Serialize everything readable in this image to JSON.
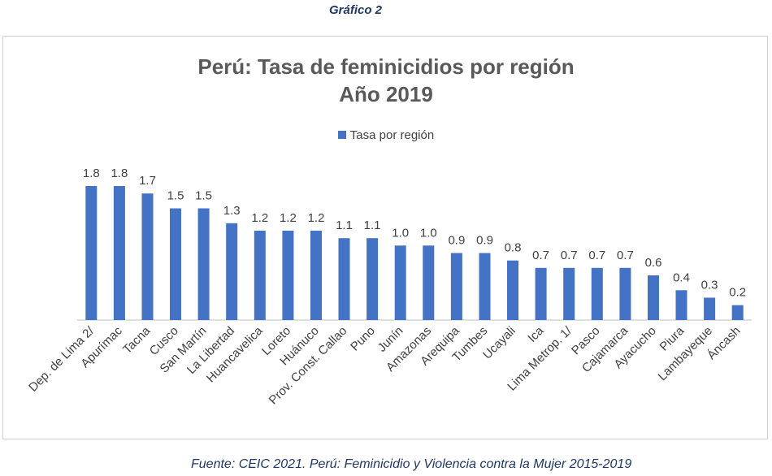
{
  "caption_top": "Gráfico 2",
  "caption_bottom": "Fuente: CEIC 2021. Perú: Feminicidio y Violencia contra la Mujer 2015-2019",
  "colors": {
    "bar": "#4472c4",
    "axis": "#bfbfbf",
    "text": "#404040",
    "title": "#595959"
  },
  "chart_data": {
    "type": "bar",
    "title": "Perú: Tasa de feminicidios por región",
    "subtitle": "Año 2019",
    "legend": [
      "Tasa por región"
    ],
    "legend_position": "top",
    "categories": [
      "Dep. de Lima 2/",
      "Apurímac",
      "Tacna",
      "Cusco",
      "San Martín",
      "La Libertad",
      "Huancavelica",
      "Loreto",
      "Huánuco",
      "Prov. Const. Callao",
      "Puno",
      "Junín",
      "Amazonas",
      "Arequipa",
      "Tumbes",
      "Ucayali",
      "Ica",
      "Lima Metrop. 1/",
      "Pasco",
      "Cajamarca",
      "Ayacucho",
      "Piura",
      "Lambayeque",
      "Áncash"
    ],
    "values": [
      1.8,
      1.8,
      1.7,
      1.5,
      1.5,
      1.3,
      1.2,
      1.2,
      1.2,
      1.1,
      1.1,
      1.0,
      1.0,
      0.9,
      0.9,
      0.8,
      0.7,
      0.7,
      0.7,
      0.7,
      0.6,
      0.4,
      0.3,
      0.2
    ],
    "value_labels": [
      "1.8",
      "1.8",
      "1.7",
      "1.5",
      "1.5",
      "1.3",
      "1.2",
      "1.2",
      "1.2",
      "1.1",
      "1.1",
      "1.0",
      "1.0",
      "0.9",
      "0.9",
      "0.8",
      "0.7",
      "0.7",
      "0.7",
      "0.7",
      "0.6",
      "0.4",
      "0.3",
      "0.2"
    ],
    "ylim": [
      0,
      1.8
    ],
    "grid": false,
    "xlabel": "",
    "ylabel": ""
  }
}
